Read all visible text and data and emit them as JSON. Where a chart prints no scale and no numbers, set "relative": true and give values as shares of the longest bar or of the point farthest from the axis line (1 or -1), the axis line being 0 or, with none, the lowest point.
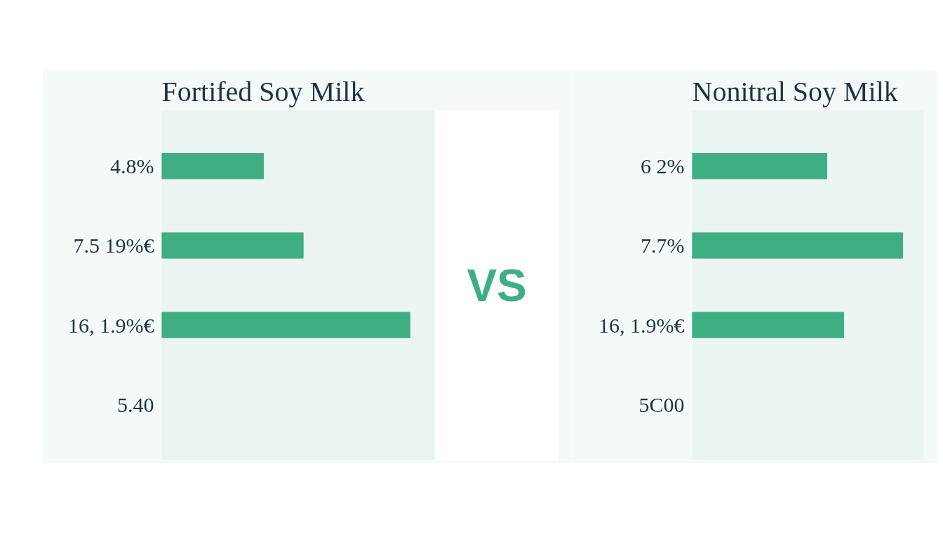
{
  "chart_data": [
    {
      "type": "bar",
      "title": "Fortifed Soy Milk",
      "orientation": "horizontal",
      "relative": true,
      "categories": [
        "4.8%",
        "7.5 19%€",
        "16, 1.9%€",
        "5.40"
      ],
      "values": [
        0.41,
        0.57,
        1,
        null
      ],
      "color": "#3fae85",
      "tick_labels": "y",
      "annotations": [
        "VS"
      ]
    },
    {
      "type": "bar",
      "title": "Nonitral Soy Milk",
      "orientation": "horizontal",
      "relative": true,
      "categories": [
        "6 2%",
        "7.7%",
        "16, 1.9%€",
        "5C00"
      ],
      "values": [
        0.64,
        1,
        0.72,
        null
      ],
      "color": "#3fae85",
      "tick_labels": "y"
    }
  ]
}
